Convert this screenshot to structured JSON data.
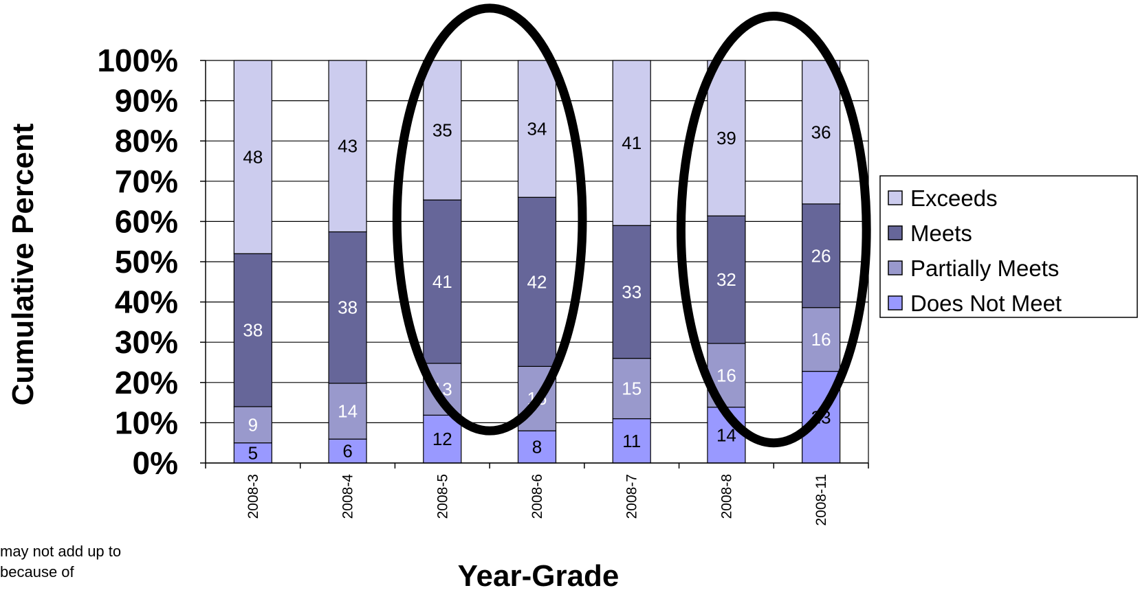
{
  "chart_data": {
    "type": "bar",
    "stacked": true,
    "categories": [
      "2008-3",
      "2008-4",
      "2008-5",
      "2008-6",
      "2008-7",
      "2008-8",
      "2008-11"
    ],
    "series": [
      {
        "name": "Does Not Meet",
        "color": "#9999ff",
        "label_color": "#000000",
        "values": [
          5,
          6,
          12,
          8,
          11,
          14,
          23
        ]
      },
      {
        "name": "Partially Meets",
        "color": "#9999cc",
        "label_color": "#ffffff",
        "values": [
          9,
          14,
          13,
          16,
          15,
          16,
          16
        ]
      },
      {
        "name": "Meets",
        "color": "#666699",
        "label_color": "#ffffff",
        "values": [
          38,
          38,
          41,
          42,
          33,
          32,
          26
        ]
      },
      {
        "name": "Exceeds",
        "color": "#ccccee",
        "label_color": "#000000",
        "values": [
          48,
          43,
          35,
          34,
          41,
          39,
          36
        ]
      }
    ],
    "data_label_text": [
      [
        "5",
        "6",
        "12",
        "8",
        "11",
        "14",
        "23"
      ],
      [
        "9",
        "14",
        "13",
        "16",
        "15",
        "16",
        "16"
      ],
      [
        "38",
        "38",
        "41",
        "42",
        "33",
        "32",
        "26"
      ],
      [
        "48",
        "43",
        "35",
        "34",
        "41",
        "39",
        "36"
      ]
    ],
    "xlabel": "Year-Grade",
    "ylabel": "Cumulative Percent",
    "ylim": [
      0,
      100
    ],
    "yticks": [
      "0%",
      "10%",
      "20%",
      "30%",
      "40%",
      "50%",
      "60%",
      "70%",
      "80%",
      "90%",
      "100%"
    ],
    "grid": true,
    "legend_position": "right",
    "legend_order": [
      "Exceeds",
      "Meets",
      "Partially Meets",
      "Does Not Meet"
    ],
    "highlight_ellipses": [
      {
        "categories": [
          "2008-5",
          "2008-6"
        ],
        "y_range": [
          8,
          113
        ]
      },
      {
        "categories": [
          "2008-8",
          "2008-11"
        ],
        "y_range": [
          5,
          111
        ]
      }
    ]
  },
  "footnote": "may not add up to\n because of"
}
